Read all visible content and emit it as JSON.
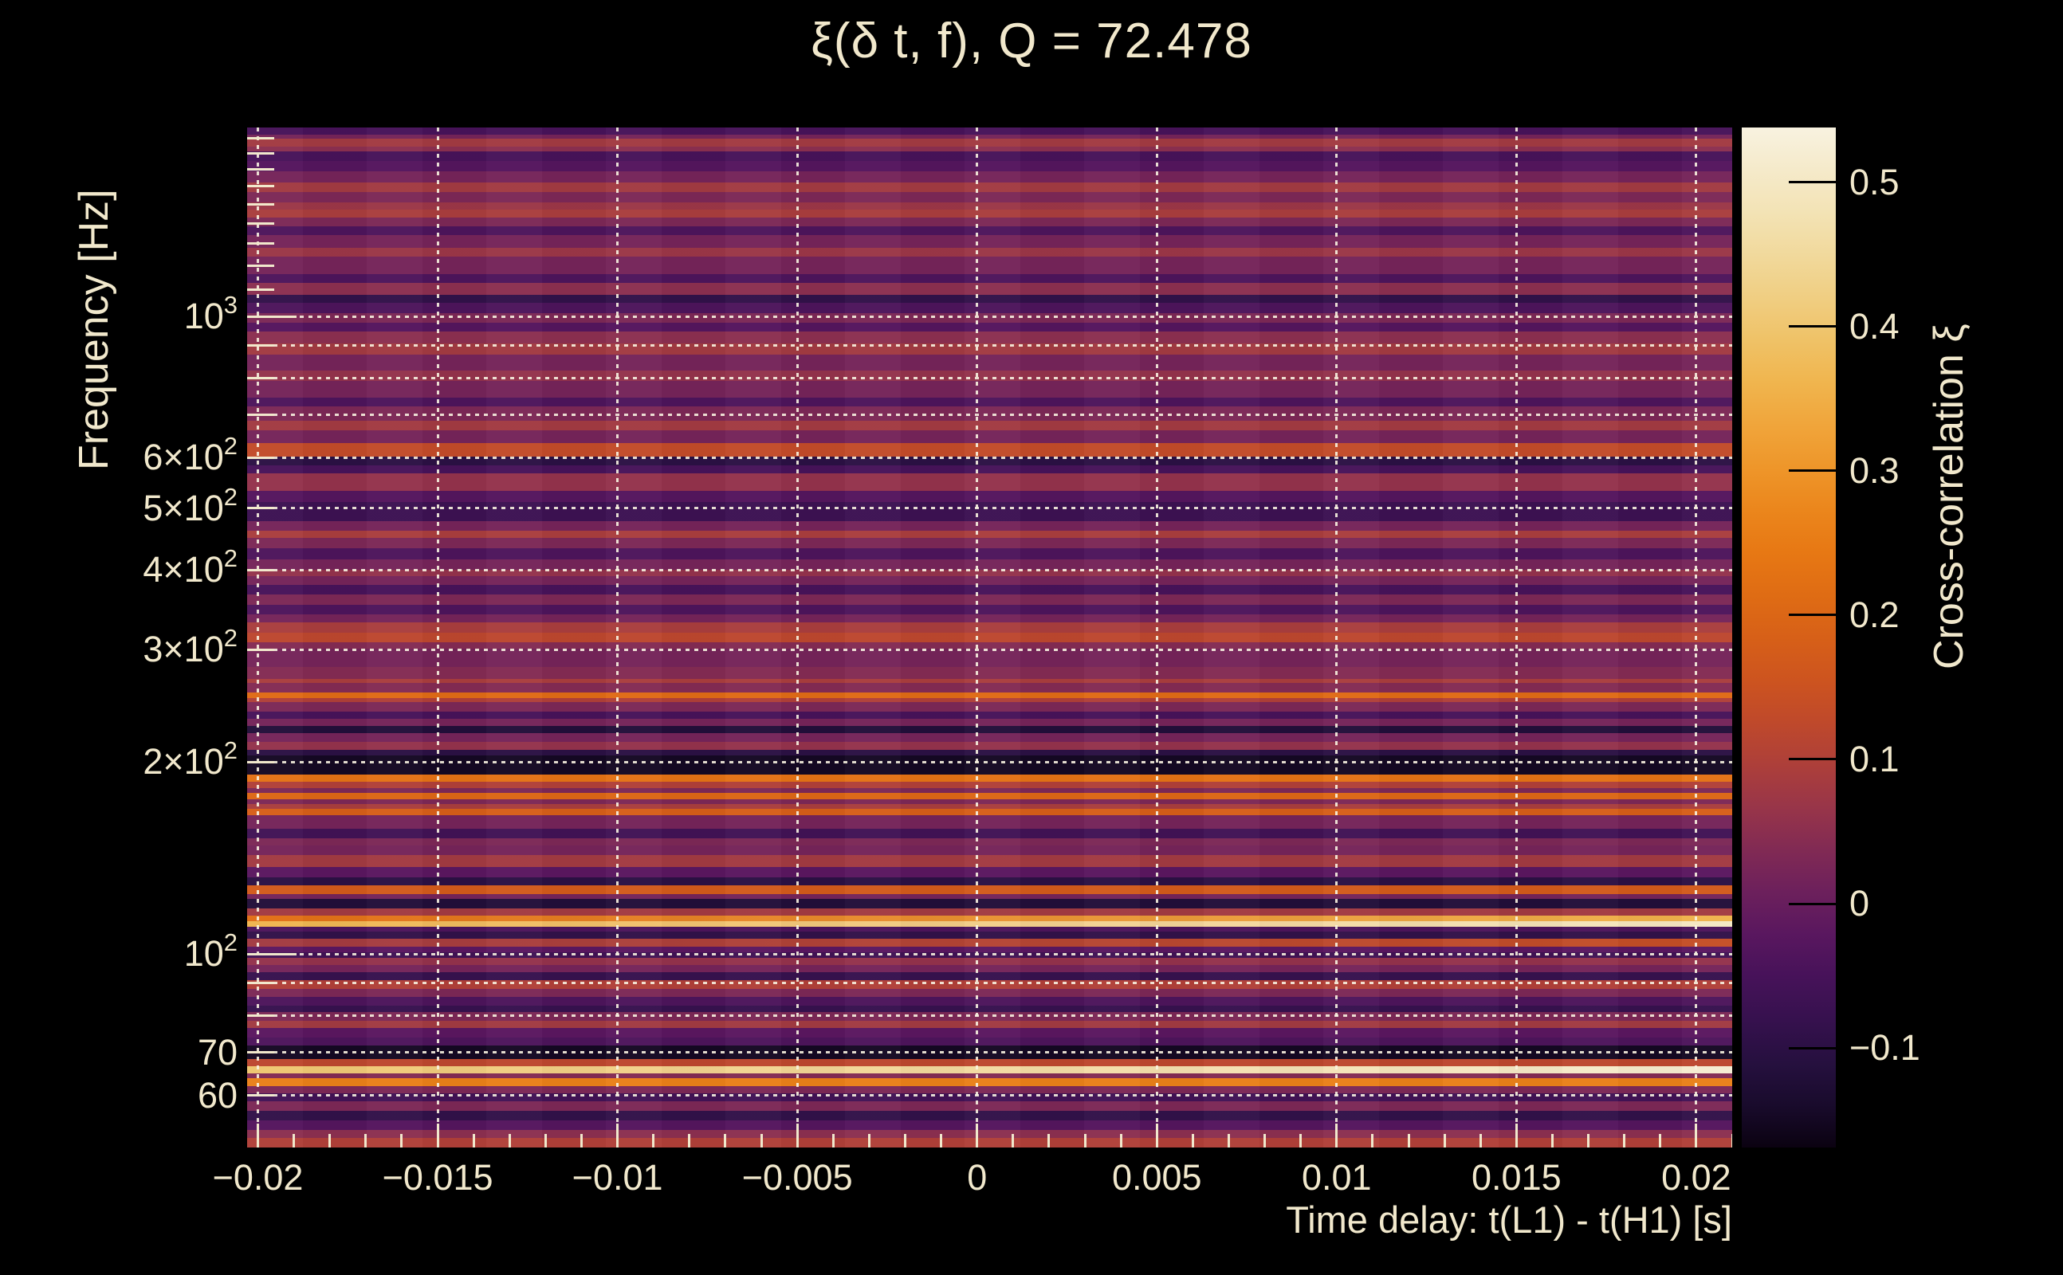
{
  "accent_text_color": "#f1e8cc",
  "background_color": "#000000",
  "chart_data": {
    "type": "heatmap",
    "title": "ξ(δ t, f), Q = 72.478",
    "q_value": 72.478,
    "xlabel": "Time delay: t(L1) - t(H1) [s]",
    "ylabel": "Frequency [Hz]",
    "colorbar_label": "Cross-correlation ξ",
    "x_range_s": [
      -0.0203,
      0.021
    ],
    "y_range_hz": [
      49.7,
      1978
    ],
    "y_scale": "log",
    "grid": true,
    "color_range": [
      -0.169,
      0.538
    ],
    "x_ticks": [
      {
        "value": -0.02,
        "label": "−0.02"
      },
      {
        "value": -0.015,
        "label": "−0.015"
      },
      {
        "value": -0.01,
        "label": "−0.01"
      },
      {
        "value": -0.005,
        "label": "−0.005"
      },
      {
        "value": 0,
        "label": "0"
      },
      {
        "value": 0.005,
        "label": "0.005"
      },
      {
        "value": 0.01,
        "label": "0.01"
      },
      {
        "value": 0.015,
        "label": "0.015"
      },
      {
        "value": 0.02,
        "label": "0.02"
      }
    ],
    "x_minor_tick_step": 0.001,
    "y_ticks_labeled": [
      {
        "value": 1000,
        "mantissa": "10",
        "exponent": "3",
        "major": true
      },
      {
        "value": 600,
        "mantissa": "6×10",
        "exponent": "2",
        "major": false
      },
      {
        "value": 500,
        "mantissa": "5×10",
        "exponent": "2",
        "major": false
      },
      {
        "value": 400,
        "mantissa": "4×10",
        "exponent": "2",
        "major": false
      },
      {
        "value": 300,
        "mantissa": "3×10",
        "exponent": "2",
        "major": false
      },
      {
        "value": 200,
        "mantissa": "2×10",
        "exponent": "2",
        "major": false
      },
      {
        "value": 100,
        "mantissa": "10",
        "exponent": "2",
        "major": true
      },
      {
        "value": 70,
        "mantissa": "70",
        "exponent": "",
        "major": false
      },
      {
        "value": 60,
        "mantissa": "60",
        "exponent": "",
        "major": false
      }
    ],
    "y_grid_freqs": [
      1000,
      900,
      800,
      700,
      600,
      500,
      400,
      300,
      200,
      100,
      90,
      80,
      70,
      60
    ],
    "y_minor_tick_freqs": [
      1900,
      1800,
      1700,
      1600,
      1500,
      1400,
      1300,
      1200,
      1100,
      900,
      800,
      700,
      90,
      80
    ],
    "colorbar_ticks": [
      {
        "value": 0.5,
        "label": "0.5"
      },
      {
        "value": 0.4,
        "label": "0.4"
      },
      {
        "value": 0.3,
        "label": "0.3"
      },
      {
        "value": 0.2,
        "label": "0.2"
      },
      {
        "value": 0.1,
        "label": "0.1"
      },
      {
        "value": 0,
        "label": "0"
      },
      {
        "value": -0.1,
        "label": "−0.1"
      }
    ],
    "colormap_stops": [
      [
        -0.169,
        "#0b0211"
      ],
      [
        -0.14,
        "#190b2c"
      ],
      [
        -0.11,
        "#26103f"
      ],
      [
        -0.08,
        "#36114e"
      ],
      [
        -0.05,
        "#471259"
      ],
      [
        -0.02,
        "#5a175f"
      ],
      [
        0.0,
        "#661d5e"
      ],
      [
        0.02,
        "#752459"
      ],
      [
        0.04,
        "#832b53"
      ],
      [
        0.06,
        "#93324c"
      ],
      [
        0.08,
        "#a23a42"
      ],
      [
        0.1,
        "#b04038"
      ],
      [
        0.13,
        "#c24b29"
      ],
      [
        0.16,
        "#cf561d"
      ],
      [
        0.2,
        "#dc6615"
      ],
      [
        0.24,
        "#e67613"
      ],
      [
        0.28,
        "#ec8a1e"
      ],
      [
        0.32,
        "#f09f33"
      ],
      [
        0.36,
        "#f0b44d"
      ],
      [
        0.4,
        "#efc66f"
      ],
      [
        0.44,
        "#f1d694"
      ],
      [
        0.48,
        "#f3e3b6"
      ],
      [
        0.52,
        "#f6edd2"
      ],
      [
        0.538,
        "#f8f2e0"
      ]
    ],
    "bands_note": "Horizontal frequency bands; each entry is [lower_freq_hz, xi] or [lower_freq_hz, xi_left, xi_right]; the upper bound of a band is the previous entry's lower bound, starting at 1978 Hz. xi is roughly constant vs time delay.",
    "bands": [
      [
        1930,
        -0.05
      ],
      [
        1900,
        0.02
      ],
      [
        1845,
        0.08
      ],
      [
        1815,
        0.05
      ],
      [
        1755,
        -0.05
      ],
      [
        1690,
        -0.03
      ],
      [
        1620,
        0.02
      ],
      [
        1565,
        0.08
      ],
      [
        1510,
        0.03
      ],
      [
        1470,
        0.07
      ],
      [
        1430,
        0.09
      ],
      [
        1385,
        0.03
      ],
      [
        1340,
        -0.04
      ],
      [
        1280,
        0.02
      ],
      [
        1240,
        0.07
      ],
      [
        1165,
        0.02
      ],
      [
        1130,
        -0.04
      ],
      [
        1082,
        0.05
      ],
      [
        1050,
        -0.09
      ],
      [
        1012,
        -0.04
      ],
      [
        976,
        0.03
      ],
      [
        946,
        -0.03
      ],
      [
        906,
        0.05
      ],
      [
        870,
        0.08
      ],
      [
        822,
        0.02
      ],
      [
        792,
        0.06
      ],
      [
        746,
        0.02
      ],
      [
        722,
        -0.04
      ],
      [
        686,
        0.03
      ],
      [
        662,
        0.08
      ],
      [
        632,
        0.02
      ],
      [
        603,
        0.13
      ],
      [
        583,
        -0.1
      ],
      [
        567,
        -0.05
      ],
      [
        532,
        0.06
      ],
      [
        511,
        -0.03
      ],
      [
        477,
        -0.07
      ],
      [
        461,
        0.02
      ],
      [
        449,
        0.09
      ],
      [
        433,
        0.03
      ],
      [
        416,
        -0.04
      ],
      [
        401,
        0.02
      ],
      [
        391,
        0.06
      ],
      [
        379,
        0.02
      ],
      [
        366,
        -0.05
      ],
      [
        353,
        0.03
      ],
      [
        341,
        -0.04
      ],
      [
        331,
        0.02
      ],
      [
        319,
        0.09
      ],
      [
        308,
        0.12
      ],
      [
        301,
        0.04
      ],
      [
        282,
        0.02
      ],
      [
        270,
        0.04
      ],
      [
        266,
        0.09
      ],
      [
        257,
        0.04
      ],
      [
        252,
        0.21
      ],
      [
        248,
        0.1
      ],
      [
        240,
        0.03
      ],
      [
        234,
        -0.05
      ],
      [
        228,
        0.02
      ],
      [
        222,
        -0.12
      ],
      [
        215,
        0.02
      ],
      [
        209,
        0.06
      ],
      [
        205,
        -0.1
      ],
      [
        191,
        -0.15
      ],
      [
        186,
        0.23
      ],
      [
        182,
        0.1
      ],
      [
        179,
        0.03
      ],
      [
        175,
        0.2
      ],
      [
        172,
        0.03
      ],
      [
        169,
        0.09
      ],
      [
        165,
        0.18
      ],
      [
        157,
        0.02
      ],
      [
        152,
        -0.06
      ],
      [
        148,
        0.03
      ],
      [
        143,
        0.02
      ],
      [
        137,
        0.08
      ],
      [
        132,
        -0.02
      ],
      [
        128,
        -0.1
      ],
      [
        124,
        0.17
      ],
      [
        122,
        0.02
      ],
      [
        118,
        -0.12
      ],
      [
        115,
        0.08
      ],
      [
        112.6,
        0.22,
        0.36
      ],
      [
        110.4,
        0.36,
        0.5
      ],
      [
        108.5,
        -0.04
      ],
      [
        105.5,
        -0.09
      ],
      [
        102.5,
        0.08,
        0.14
      ],
      [
        100.5,
        -0.02
      ],
      [
        98.5,
        -0.06
      ],
      [
        96,
        0.06
      ],
      [
        93.5,
        0.02
      ],
      [
        91,
        -0.08
      ],
      [
        88,
        0.1
      ],
      [
        85.5,
        0.03
      ],
      [
        83,
        -0.04
      ],
      [
        81,
        -0.08
      ],
      [
        78.5,
        0.03
      ],
      [
        76.5,
        0.08
      ],
      [
        74,
        -0.02
      ],
      [
        71.8,
        -0.04
      ],
      [
        68.5,
        -0.15
      ],
      [
        66.6,
        0.12
      ],
      [
        65.0,
        0.4,
        0.52
      ],
      [
        63.9,
        0.04
      ],
      [
        62.1,
        0.26
      ],
      [
        60.4,
        0.03
      ],
      [
        58.7,
        -0.06
      ],
      [
        56.7,
        0.03
      ],
      [
        54.8,
        -0.09
      ],
      [
        52.9,
        -0.03
      ],
      [
        51.4,
        0.05
      ],
      [
        49.7,
        0.1
      ]
    ]
  }
}
